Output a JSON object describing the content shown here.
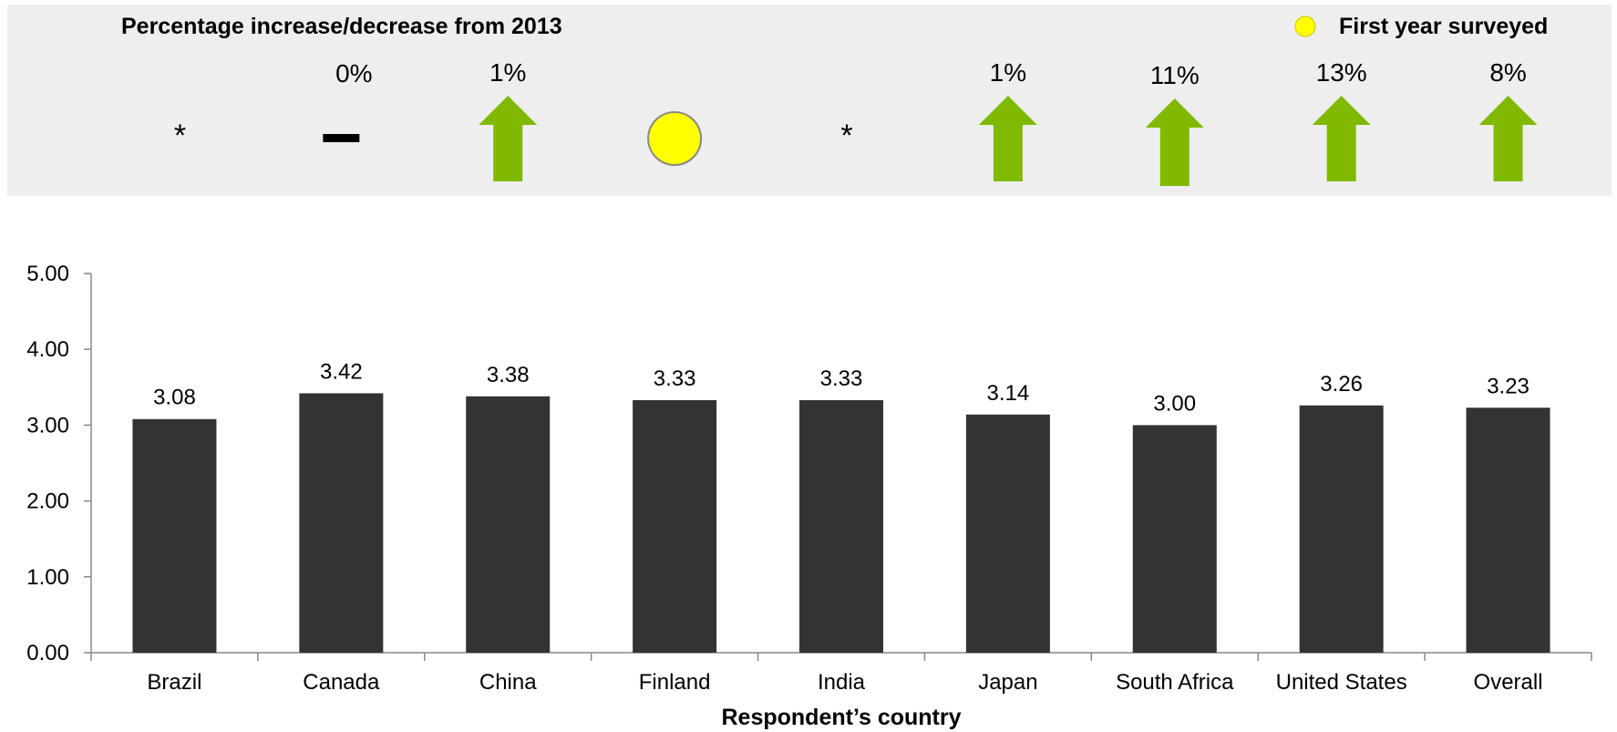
{
  "header": {
    "title": "Percentage increase/decrease from 2013",
    "legend_label": "First year surveyed",
    "legend_color": "#FFFF00"
  },
  "indicators": [
    {
      "category": "Brazil",
      "type": "none",
      "text": "*"
    },
    {
      "category": "Canada",
      "type": "flat",
      "text": "0%"
    },
    {
      "category": "China",
      "type": "up",
      "text": "1%"
    },
    {
      "category": "Finland",
      "type": "new",
      "text": ""
    },
    {
      "category": "India",
      "type": "none",
      "text": "*"
    },
    {
      "category": "Japan",
      "type": "up",
      "text": "1%"
    },
    {
      "category": "South Africa",
      "type": "up",
      "text": "11%"
    },
    {
      "category": "United States",
      "type": "up",
      "text": "13%"
    },
    {
      "category": "Overall",
      "type": "up",
      "text": "8%"
    }
  ],
  "colors": {
    "bar": "#333333",
    "up_arrow": "#7FBA00",
    "panel_bg": "#EEEEEE",
    "circle_fill": "#FFFF00",
    "circle_stroke": "#888888"
  },
  "chart_data": {
    "type": "bar",
    "categories": [
      "Brazil",
      "Canada",
      "China",
      "Finland",
      "India",
      "Japan",
      "South Africa",
      "United States",
      "Overall"
    ],
    "values": [
      3.08,
      3.42,
      3.38,
      3.33,
      3.33,
      3.14,
      3.0,
      3.26,
      3.23
    ],
    "value_labels": [
      "3.08",
      "3.42",
      "3.38",
      "3.33",
      "3.33",
      "3.14",
      "3.00",
      "3.26",
      "3.23"
    ],
    "xlabel": "Respondent’s country",
    "ylabel": "",
    "ylim": [
      0,
      5
    ],
    "yticks": [
      "0.00",
      "1.00",
      "2.00",
      "3.00",
      "4.00",
      "5.00"
    ],
    "grid": false,
    "legend": "none"
  }
}
